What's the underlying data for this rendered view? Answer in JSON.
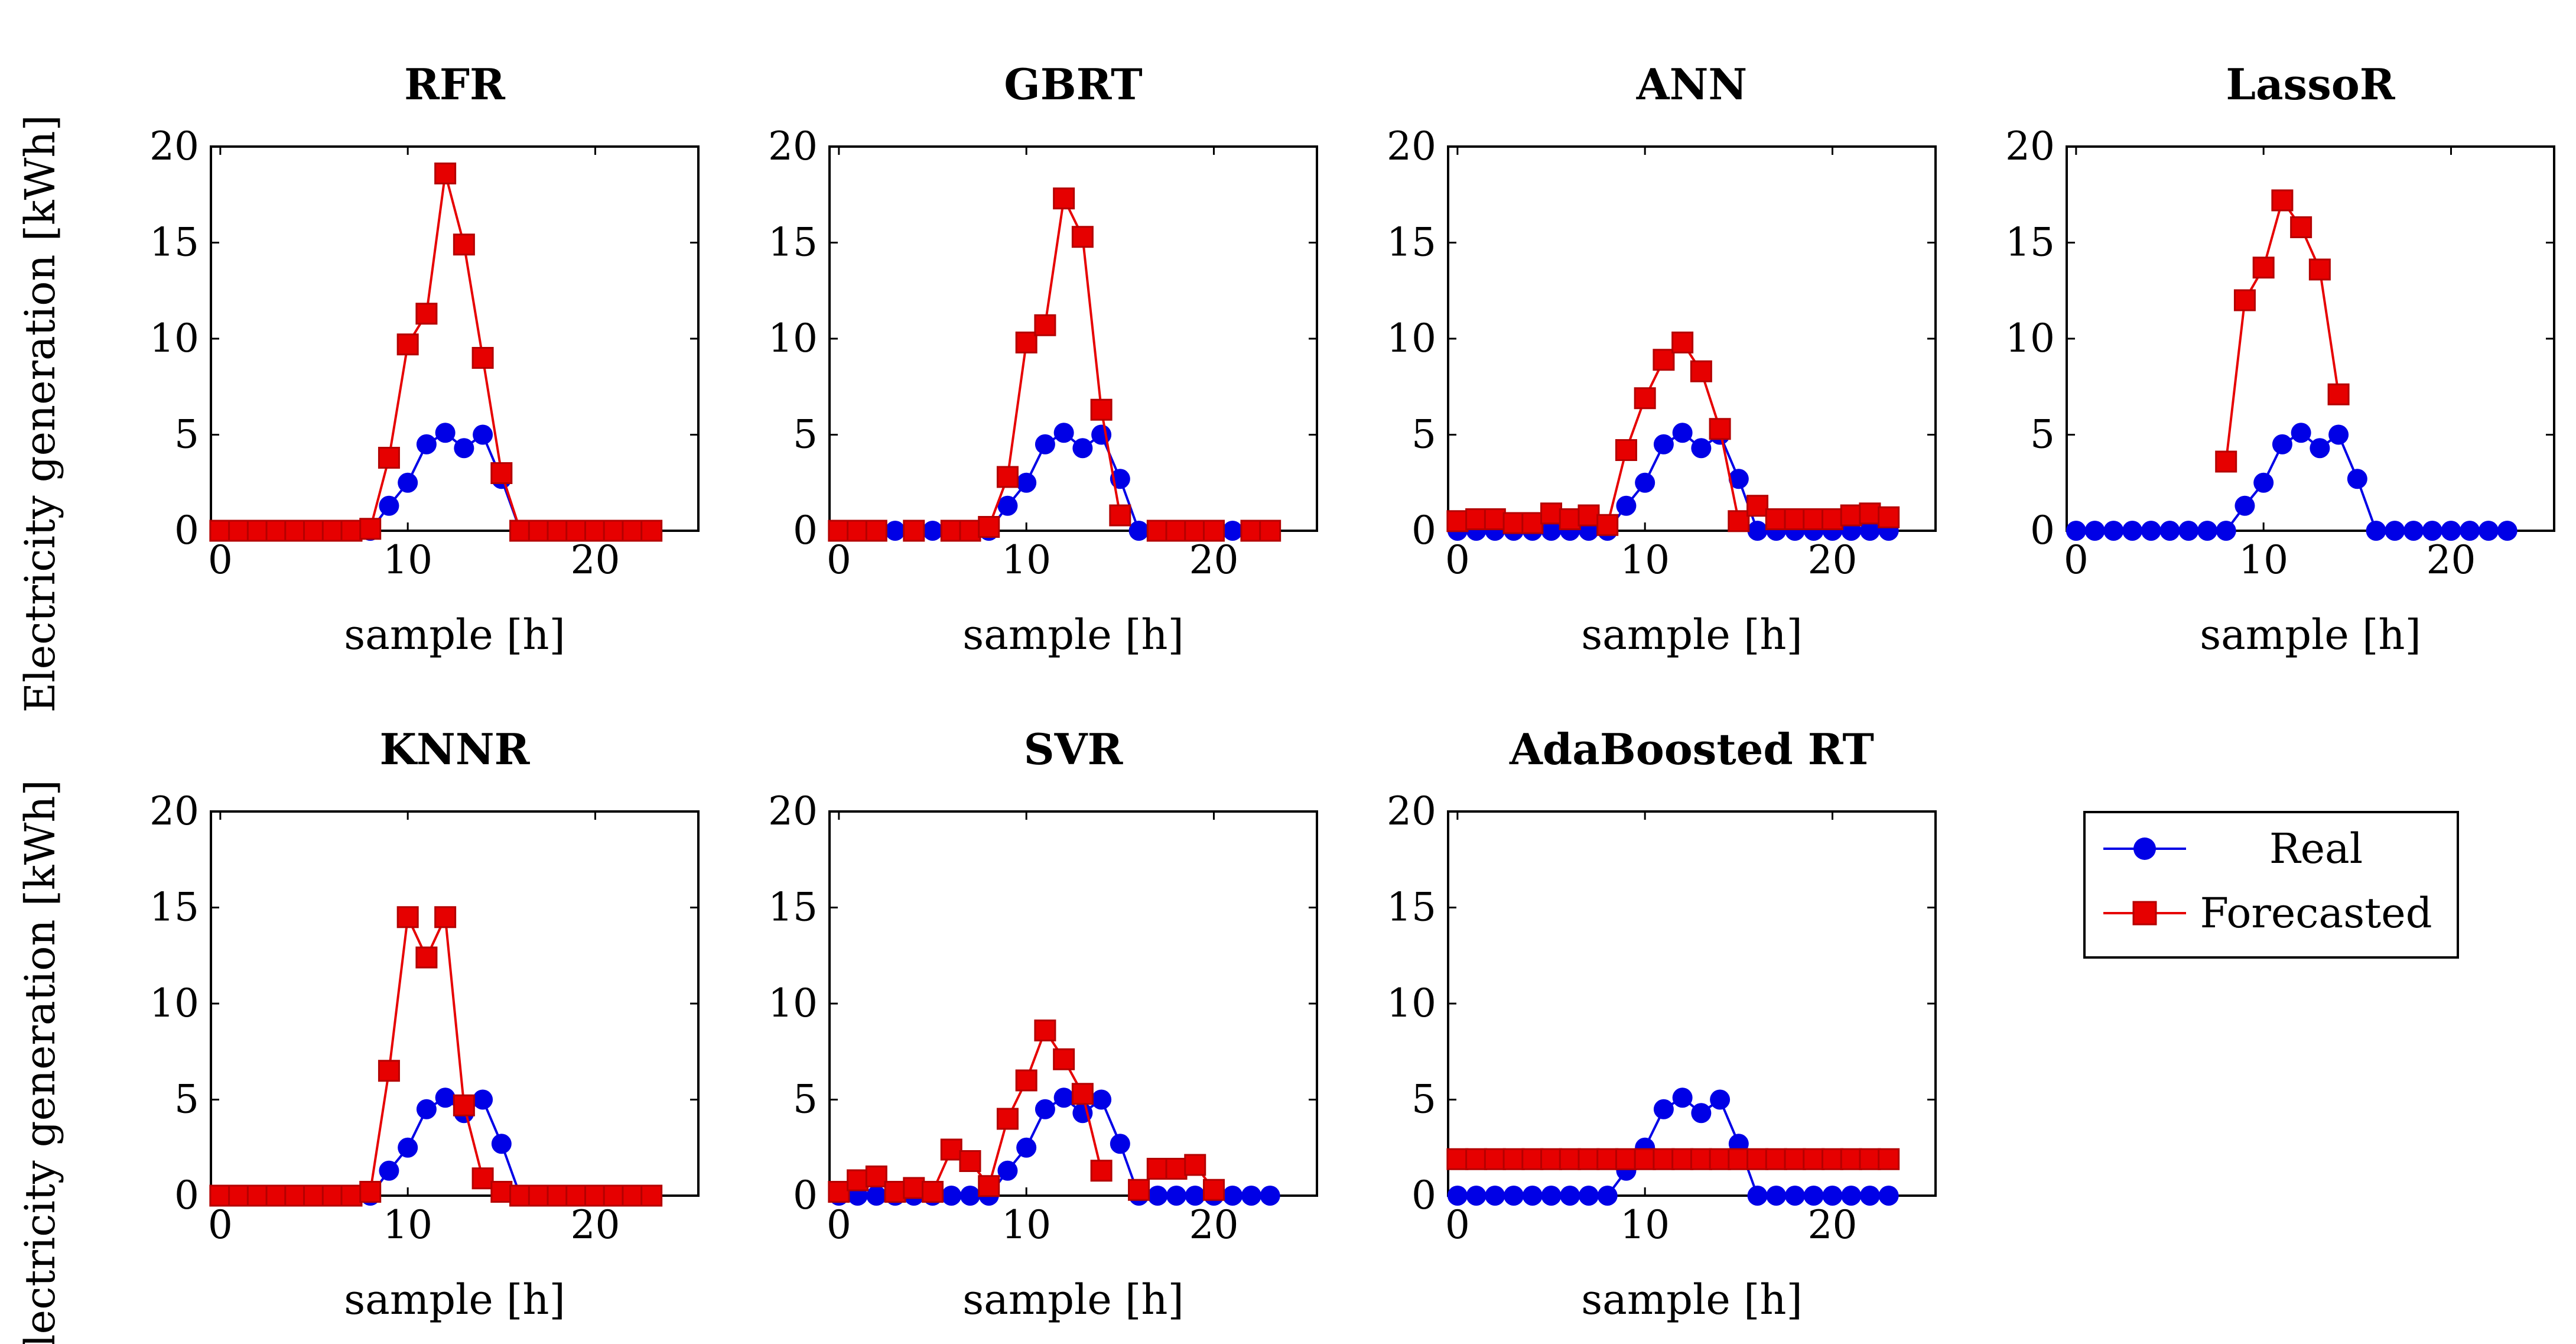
{
  "colors": {
    "real": "#0000e6",
    "forecast": "#e60000",
    "axis": "#000000"
  },
  "y_axis_label": "Electricity generation [kWh]",
  "legend": {
    "placement": "right-of-bottom-row",
    "entries": [
      "Real",
      "Forecasted"
    ]
  },
  "chart_data": [
    {
      "type": "line",
      "title": "RFR",
      "xlabel": "sample [h]",
      "ylabel": "Electricity generation [kWh]",
      "xlim": [
        -0.5,
        25.5
      ],
      "ylim": [
        0,
        20
      ],
      "xticks": [
        0,
        10,
        20
      ],
      "yticks": [
        0,
        5,
        10,
        15,
        20
      ],
      "series": [
        {
          "name": "Real",
          "x": [
            0,
            1,
            2,
            3,
            4,
            5,
            6,
            7,
            8,
            9,
            10,
            11,
            12,
            13,
            14,
            15,
            16,
            17,
            18,
            19,
            20,
            21,
            22,
            23
          ],
          "values": [
            0,
            0,
            0,
            0,
            0,
            0,
            0,
            0,
            0,
            1.3,
            2.5,
            4.5,
            5.1,
            4.3,
            5.0,
            2.7,
            0,
            0,
            0,
            0,
            0,
            0,
            0,
            0
          ]
        },
        {
          "name": "Forecasted",
          "x": [
            0,
            1,
            2,
            3,
            4,
            5,
            6,
            7,
            8,
            9,
            10,
            11,
            12,
            13,
            14,
            15,
            16,
            17,
            18,
            19,
            20,
            21,
            22,
            23
          ],
          "values": [
            0,
            0,
            0,
            0,
            0,
            0,
            0,
            0,
            0.1,
            3.8,
            9.7,
            11.3,
            18.6,
            14.9,
            9.0,
            3.0,
            0,
            0,
            0,
            0,
            0,
            0,
            0,
            0
          ]
        }
      ]
    },
    {
      "type": "line",
      "title": "GBRT",
      "xlabel": "sample [h]",
      "ylabel": "Electricity generation [kWh]",
      "xlim": [
        -0.5,
        25.5
      ],
      "ylim": [
        0,
        20
      ],
      "xticks": [
        0,
        10,
        20
      ],
      "yticks": [
        0,
        5,
        10,
        15,
        20
      ],
      "series": [
        {
          "name": "Real",
          "x": [
            0,
            1,
            2,
            3,
            4,
            5,
            6,
            7,
            8,
            9,
            10,
            11,
            12,
            13,
            14,
            15,
            16,
            17,
            18,
            19,
            20,
            21,
            22,
            23
          ],
          "values": [
            0,
            0,
            0,
            0,
            0,
            0,
            0,
            0,
            0,
            1.3,
            2.5,
            4.5,
            5.1,
            4.3,
            5.0,
            2.7,
            0,
            0,
            0,
            0,
            0,
            0,
            0,
            0
          ]
        },
        {
          "name": "Forecasted",
          "x": [
            0,
            1,
            2,
            4,
            6,
            7,
            8,
            9,
            10,
            11,
            12,
            13,
            14,
            15,
            17,
            18,
            19,
            20,
            22,
            23
          ],
          "values": [
            0,
            0,
            0,
            0,
            0,
            0,
            0.2,
            2.8,
            9.8,
            10.7,
            17.3,
            15.3,
            6.3,
            0.8,
            0,
            0,
            0,
            0,
            0,
            0
          ]
        }
      ]
    },
    {
      "type": "line",
      "title": "ANN",
      "xlabel": "sample [h]",
      "ylabel": "Electricity generation [kWh]",
      "xlim": [
        -0.5,
        25.5
      ],
      "ylim": [
        0,
        20
      ],
      "xticks": [
        0,
        10,
        20
      ],
      "yticks": [
        0,
        5,
        10,
        15,
        20
      ],
      "series": [
        {
          "name": "Real",
          "x": [
            0,
            1,
            2,
            3,
            4,
            5,
            6,
            7,
            8,
            9,
            10,
            11,
            12,
            13,
            14,
            15,
            16,
            17,
            18,
            19,
            20,
            21,
            22,
            23
          ],
          "values": [
            0,
            0,
            0,
            0,
            0,
            0,
            0,
            0,
            0,
            1.3,
            2.5,
            4.5,
            5.1,
            4.3,
            5.0,
            2.7,
            0,
            0,
            0,
            0,
            0,
            0,
            0,
            0
          ]
        },
        {
          "name": "Forecasted",
          "x": [
            0,
            1,
            2,
            3,
            4,
            5,
            6,
            7,
            8,
            9,
            10,
            11,
            12,
            13,
            14,
            15,
            16,
            17,
            18,
            19,
            20,
            21,
            22,
            23
          ],
          "values": [
            0.5,
            0.6,
            0.6,
            0.4,
            0.4,
            0.9,
            0.6,
            0.8,
            0.3,
            4.2,
            6.9,
            8.9,
            9.8,
            8.3,
            5.3,
            0.5,
            1.3,
            0.6,
            0.6,
            0.6,
            0.6,
            0.8,
            0.9,
            0.7
          ]
        }
      ]
    },
    {
      "type": "line",
      "title": "LassoR",
      "xlabel": "sample [h]",
      "ylabel": "Electricity generation [kWh]",
      "xlim": [
        -0.5,
        25.5
      ],
      "ylim": [
        0,
        20
      ],
      "xticks": [
        0,
        10,
        20
      ],
      "yticks": [
        0,
        5,
        10,
        15,
        20
      ],
      "series": [
        {
          "name": "Real",
          "x": [
            0,
            1,
            2,
            3,
            4,
            5,
            6,
            7,
            8,
            9,
            10,
            11,
            12,
            13,
            14,
            15,
            16,
            17,
            18,
            19,
            20,
            21,
            22,
            23
          ],
          "values": [
            0,
            0,
            0,
            0,
            0,
            0,
            0,
            0,
            0,
            1.3,
            2.5,
            4.5,
            5.1,
            4.3,
            5.0,
            2.7,
            0,
            0,
            0,
            0,
            0,
            0,
            0,
            0
          ]
        },
        {
          "name": "Forecasted",
          "x": [
            8,
            9,
            10,
            11,
            12,
            13,
            14
          ],
          "values": [
            3.6,
            12.0,
            13.7,
            17.2,
            15.8,
            13.6,
            7.1
          ]
        }
      ]
    },
    {
      "type": "line",
      "title": "KNNR",
      "xlabel": "sample [h]",
      "ylabel": "Electricity generation [kWh]",
      "xlim": [
        -0.5,
        25.5
      ],
      "ylim": [
        0,
        20
      ],
      "xticks": [
        0,
        10,
        20
      ],
      "yticks": [
        0,
        5,
        10,
        15,
        20
      ],
      "series": [
        {
          "name": "Real",
          "x": [
            0,
            1,
            2,
            3,
            4,
            5,
            6,
            7,
            8,
            9,
            10,
            11,
            12,
            13,
            14,
            15,
            16,
            17,
            18,
            19,
            20,
            21,
            22,
            23
          ],
          "values": [
            0,
            0,
            0,
            0,
            0,
            0,
            0,
            0,
            0,
            1.3,
            2.5,
            4.5,
            5.1,
            4.3,
            5.0,
            2.7,
            0,
            0,
            0,
            0,
            0,
            0,
            0,
            0
          ]
        },
        {
          "name": "Forecasted",
          "x": [
            0,
            1,
            2,
            3,
            4,
            5,
            6,
            7,
            8,
            9,
            10,
            11,
            12,
            13,
            14,
            15,
            16,
            17,
            18,
            19,
            20,
            21,
            22,
            23
          ],
          "values": [
            0,
            0,
            0,
            0,
            0,
            0,
            0,
            0,
            0.2,
            6.5,
            14.5,
            12.4,
            14.5,
            4.7,
            0.9,
            0.2,
            0,
            0,
            0,
            0,
            0,
            0,
            0,
            0
          ]
        }
      ]
    },
    {
      "type": "line",
      "title": "SVR",
      "xlabel": "sample [h]",
      "ylabel": "Electricity generation [kWh]",
      "xlim": [
        -0.5,
        25.5
      ],
      "ylim": [
        0,
        20
      ],
      "xticks": [
        0,
        10,
        20
      ],
      "yticks": [
        0,
        5,
        10,
        15,
        20
      ],
      "series": [
        {
          "name": "Real",
          "x": [
            0,
            1,
            2,
            3,
            4,
            5,
            6,
            7,
            8,
            9,
            10,
            11,
            12,
            13,
            14,
            15,
            16,
            17,
            18,
            19,
            20,
            21,
            22,
            23
          ],
          "values": [
            0,
            0,
            0,
            0,
            0,
            0,
            0,
            0,
            0,
            1.3,
            2.5,
            4.5,
            5.1,
            4.3,
            5.0,
            2.7,
            0,
            0,
            0,
            0,
            0,
            0,
            0,
            0
          ]
        },
        {
          "name": "Forecasted",
          "x": [
            0,
            1,
            2,
            3,
            4,
            5,
            6,
            7,
            8,
            9,
            10,
            11,
            12,
            13,
            14,
            16,
            17,
            18,
            19,
            20
          ],
          "values": [
            0.2,
            0.8,
            1.0,
            0.2,
            0.4,
            0.2,
            2.4,
            1.8,
            0.5,
            4.0,
            6.0,
            8.6,
            7.1,
            5.3,
            1.3,
            0.3,
            1.4,
            1.4,
            1.6,
            0.3
          ]
        }
      ]
    },
    {
      "type": "line",
      "title": "AdaBoosted RT",
      "xlabel": "sample [h]",
      "ylabel": "Electricity generation [kWh]",
      "xlim": [
        -0.5,
        25.5
      ],
      "ylim": [
        0,
        20
      ],
      "xticks": [
        0,
        10,
        20
      ],
      "yticks": [
        0,
        5,
        10,
        15,
        20
      ],
      "series": [
        {
          "name": "Real",
          "x": [
            0,
            1,
            2,
            3,
            4,
            5,
            6,
            7,
            8,
            9,
            10,
            11,
            12,
            13,
            14,
            15,
            16,
            17,
            18,
            19,
            20,
            21,
            22,
            23
          ],
          "values": [
            0,
            0,
            0,
            0,
            0,
            0,
            0,
            0,
            0,
            1.3,
            2.5,
            4.5,
            5.1,
            4.3,
            5.0,
            2.7,
            0,
            0,
            0,
            0,
            0,
            0,
            0,
            0
          ]
        },
        {
          "name": "Forecasted",
          "x": [
            0,
            1,
            2,
            3,
            4,
            5,
            6,
            7,
            8,
            9,
            10,
            11,
            12,
            13,
            14,
            15,
            16,
            17,
            18,
            19,
            20,
            21,
            22,
            23
          ],
          "values": [
            1.9,
            1.9,
            1.9,
            1.9,
            1.9,
            1.9,
            1.9,
            1.9,
            1.9,
            1.9,
            1.9,
            1.9,
            1.9,
            1.9,
            1.9,
            1.9,
            1.9,
            1.9,
            1.9,
            1.9,
            1.9,
            1.9,
            1.9,
            1.9
          ]
        }
      ]
    }
  ]
}
